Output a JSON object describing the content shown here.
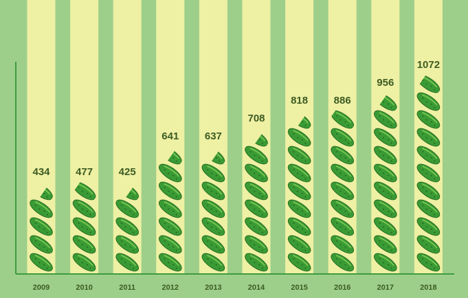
{
  "colors": {
    "background": "#9dcf8a",
    "column_stripe": "#eef0a4",
    "axis": "#3f9a3f",
    "cucumber": "#3a9b34",
    "cucumber_outline": "#256b22",
    "label_text": "#3c5b22"
  },
  "chart_data": {
    "type": "bar",
    "style": "pictograph",
    "icon": "cucumber-icon",
    "categories": [
      "2009",
      "2010",
      "2011",
      "2012",
      "2013",
      "2014",
      "2015",
      "2016",
      "2017",
      "2018"
    ],
    "values": [
      434,
      477,
      425,
      641,
      637,
      708,
      818,
      886,
      956,
      1072
    ],
    "value_labels": [
      "434",
      "477",
      "425",
      "641",
      "637",
      "708",
      "818",
      "886",
      "956",
      "1072"
    ],
    "title": "",
    "xlabel": "",
    "ylabel": "",
    "ylim": [
      0,
      1150
    ],
    "units_per_icon": 100,
    "grid": false,
    "legend": "none"
  }
}
